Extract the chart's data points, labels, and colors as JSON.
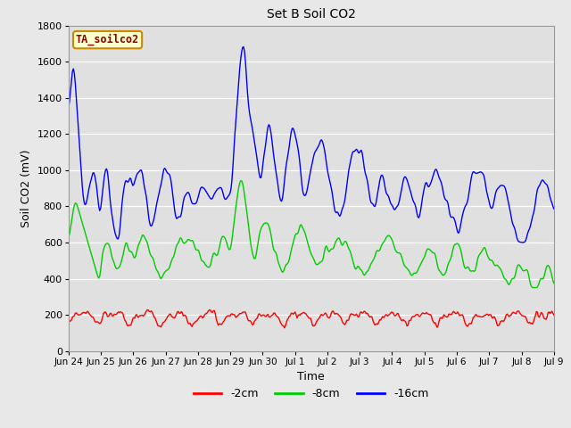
{
  "title": "Set B Soil CO2",
  "xlabel": "Time",
  "ylabel": "Soil CO2 (mV)",
  "legend_label": "TA_soilco2",
  "series_labels": [
    "-2cm",
    "-8cm",
    "-16cm"
  ],
  "series_colors": [
    "#ff0000",
    "#00cc00",
    "#0000ff"
  ],
  "ylim": [
    0,
    1800
  ],
  "xlim": [
    0,
    15
  ],
  "fig_bg": "#e8e8e8",
  "plot_bg": "#e0e0e0",
  "grid_color": "#ffffff",
  "tick_labels": [
    "Jun 24",
    "Jun 25",
    "Jun 26",
    "Jun 27",
    "Jun 28",
    "Jun 29",
    "Jun 30",
    "Jul 1",
    "Jul 2",
    "Jul 3",
    "Jul 4",
    "Jul 5",
    "Jul 6",
    "Jul 7",
    "Jul 8",
    "Jul 9"
  ],
  "num_points": 500
}
